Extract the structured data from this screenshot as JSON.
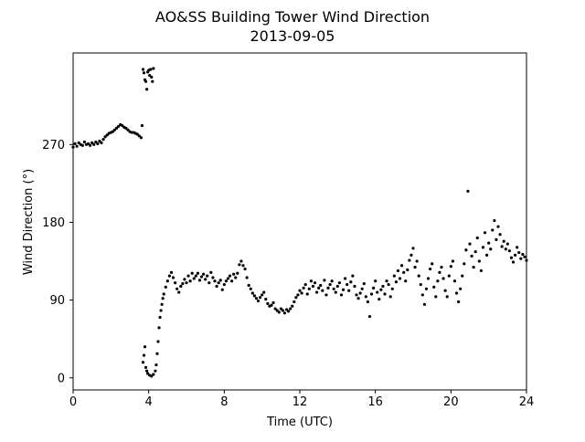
{
  "chart_data": {
    "type": "scatter",
    "title": "AO&SS Building Tower Wind Direction",
    "subtitle": "2013-09-05",
    "xlabel": "Time (UTC)",
    "ylabel": "Wind Direction (°)",
    "xlim": [
      0,
      24
    ],
    "ylim": [
      -14,
      376
    ],
    "xticks": [
      0,
      4,
      8,
      12,
      16,
      20,
      24
    ],
    "xtick_labels": [
      "0",
      "4",
      "8",
      "12",
      "16",
      "20",
      "24"
    ],
    "yticks": [
      0,
      90,
      180,
      270
    ],
    "ytick_labels": [
      "0",
      "90",
      "180",
      "270"
    ],
    "grid": false,
    "legend": "none",
    "marker_color": "#000000",
    "series": [
      {
        "points": [
          [
            0.0,
            267
          ],
          [
            0.1,
            271
          ],
          [
            0.2,
            268
          ],
          [
            0.3,
            272
          ],
          [
            0.4,
            270
          ],
          [
            0.5,
            269
          ],
          [
            0.6,
            273
          ],
          [
            0.7,
            270
          ],
          [
            0.8,
            271
          ],
          [
            0.9,
            269
          ],
          [
            1.0,
            272
          ],
          [
            1.1,
            270
          ],
          [
            1.2,
            273
          ],
          [
            1.3,
            271
          ],
          [
            1.4,
            274
          ],
          [
            1.5,
            272
          ],
          [
            1.6,
            276
          ],
          [
            1.7,
            279
          ],
          [
            1.8,
            281
          ],
          [
            1.9,
            283
          ],
          [
            2.0,
            284
          ],
          [
            2.1,
            285
          ],
          [
            2.2,
            287
          ],
          [
            2.3,
            289
          ],
          [
            2.4,
            291
          ],
          [
            2.5,
            293
          ],
          [
            2.6,
            292
          ],
          [
            2.7,
            290
          ],
          [
            2.8,
            289
          ],
          [
            2.9,
            287
          ],
          [
            3.0,
            285
          ],
          [
            3.1,
            284
          ],
          [
            3.2,
            284
          ],
          [
            3.3,
            283
          ],
          [
            3.4,
            282
          ],
          [
            3.5,
            280
          ],
          [
            3.6,
            278
          ],
          [
            3.65,
            292
          ],
          [
            3.7,
            357
          ],
          [
            3.75,
            353
          ],
          [
            3.8,
            345
          ],
          [
            3.85,
            343
          ],
          [
            3.9,
            334
          ],
          [
            3.95,
            354
          ],
          [
            4.0,
            356
          ],
          [
            4.05,
            350
          ],
          [
            4.1,
            357
          ],
          [
            4.15,
            348
          ],
          [
            4.2,
            343
          ],
          [
            4.25,
            358
          ],
          [
            3.7,
            18
          ],
          [
            3.75,
            26
          ],
          [
            3.8,
            36
          ],
          [
            3.85,
            12
          ],
          [
            3.9,
            8
          ],
          [
            3.95,
            5
          ],
          [
            4.05,
            3
          ],
          [
            4.15,
            2
          ],
          [
            4.25,
            4
          ],
          [
            4.35,
            8
          ],
          [
            4.4,
            15
          ],
          [
            4.45,
            28
          ],
          [
            4.5,
            42
          ],
          [
            4.55,
            58
          ],
          [
            4.6,
            70
          ],
          [
            4.65,
            78
          ],
          [
            4.7,
            85
          ],
          [
            4.75,
            92
          ],
          [
            4.8,
            97
          ],
          [
            4.9,
            105
          ],
          [
            5.0,
            112
          ],
          [
            5.1,
            118
          ],
          [
            5.2,
            122
          ],
          [
            5.3,
            116
          ],
          [
            5.4,
            110
          ],
          [
            5.5,
            103
          ],
          [
            5.6,
            99
          ],
          [
            5.7,
            106
          ],
          [
            5.8,
            109
          ],
          [
            5.9,
            114
          ],
          [
            6.0,
            110
          ],
          [
            6.1,
            118
          ],
          [
            6.2,
            112
          ],
          [
            6.3,
            121
          ],
          [
            6.4,
            115
          ],
          [
            6.5,
            118
          ],
          [
            6.6,
            121
          ],
          [
            6.7,
            113
          ],
          [
            6.8,
            117
          ],
          [
            6.9,
            120
          ],
          [
            7.0,
            114
          ],
          [
            7.1,
            118
          ],
          [
            7.2,
            110
          ],
          [
            7.3,
            122
          ],
          [
            7.4,
            116
          ],
          [
            7.5,
            112
          ],
          [
            7.6,
            106
          ],
          [
            7.7,
            110
          ],
          [
            7.8,
            113
          ],
          [
            7.9,
            102
          ],
          [
            8.0,
            108
          ],
          [
            8.1,
            112
          ],
          [
            8.2,
            115
          ],
          [
            8.3,
            118
          ],
          [
            8.4,
            112
          ],
          [
            8.5,
            120
          ],
          [
            8.6,
            116
          ],
          [
            8.7,
            121
          ],
          [
            8.8,
            131
          ],
          [
            8.9,
            135
          ],
          [
            9.0,
            130
          ],
          [
            9.1,
            126
          ],
          [
            9.2,
            116
          ],
          [
            9.3,
            107
          ],
          [
            9.4,
            103
          ],
          [
            9.5,
            98
          ],
          [
            9.6,
            95
          ],
          [
            9.7,
            92
          ],
          [
            9.8,
            89
          ],
          [
            9.9,
            93
          ],
          [
            10.0,
            96
          ],
          [
            10.1,
            99
          ],
          [
            10.2,
            91
          ],
          [
            10.3,
            86
          ],
          [
            10.4,
            83
          ],
          [
            10.5,
            84
          ],
          [
            10.6,
            87
          ],
          [
            10.7,
            80
          ],
          [
            10.8,
            78
          ],
          [
            10.9,
            76
          ],
          [
            11.0,
            80
          ],
          [
            11.1,
            78
          ],
          [
            11.2,
            75
          ],
          [
            11.3,
            79
          ],
          [
            11.4,
            77
          ],
          [
            11.5,
            80
          ],
          [
            11.6,
            83
          ],
          [
            11.7,
            88
          ],
          [
            11.8,
            93
          ],
          [
            11.9,
            96
          ],
          [
            12.0,
            101
          ],
          [
            12.1,
            98
          ],
          [
            12.2,
            104
          ],
          [
            12.3,
            108
          ],
          [
            12.4,
            97
          ],
          [
            12.5,
            103
          ],
          [
            12.6,
            112
          ],
          [
            12.7,
            106
          ],
          [
            12.8,
            110
          ],
          [
            12.9,
            99
          ],
          [
            13.0,
            104
          ],
          [
            13.1,
            107
          ],
          [
            13.2,
            101
          ],
          [
            13.3,
            113
          ],
          [
            13.4,
            96
          ],
          [
            13.5,
            104
          ],
          [
            13.6,
            108
          ],
          [
            13.7,
            112
          ],
          [
            13.8,
            103
          ],
          [
            13.9,
            99
          ],
          [
            14.0,
            106
          ],
          [
            14.1,
            110
          ],
          [
            14.2,
            96
          ],
          [
            14.3,
            102
          ],
          [
            14.4,
            115
          ],
          [
            14.5,
            108
          ],
          [
            14.6,
            101
          ],
          [
            14.7,
            111
          ],
          [
            14.8,
            118
          ],
          [
            14.9,
            106
          ],
          [
            15.0,
            96
          ],
          [
            15.1,
            92
          ],
          [
            15.2,
            98
          ],
          [
            15.3,
            103
          ],
          [
            15.4,
            109
          ],
          [
            15.5,
            94
          ],
          [
            15.6,
            88
          ],
          [
            15.7,
            71
          ],
          [
            15.8,
            97
          ],
          [
            15.9,
            104
          ],
          [
            16.0,
            112
          ],
          [
            16.1,
            99
          ],
          [
            16.2,
            91
          ],
          [
            16.3,
            102
          ],
          [
            16.4,
            106
          ],
          [
            16.5,
            97
          ],
          [
            16.6,
            112
          ],
          [
            16.7,
            108
          ],
          [
            16.8,
            94
          ],
          [
            16.9,
            103
          ],
          [
            17.0,
            118
          ],
          [
            17.1,
            111
          ],
          [
            17.2,
            124
          ],
          [
            17.3,
            115
          ],
          [
            17.4,
            130
          ],
          [
            17.5,
            122
          ],
          [
            17.6,
            112
          ],
          [
            17.7,
            125
          ],
          [
            17.8,
            136
          ],
          [
            17.9,
            142
          ],
          [
            18.0,
            150
          ],
          [
            18.1,
            128
          ],
          [
            18.2,
            135
          ],
          [
            18.3,
            118
          ],
          [
            18.4,
            108
          ],
          [
            18.5,
            96
          ],
          [
            18.6,
            85
          ],
          [
            18.7,
            103
          ],
          [
            18.8,
            115
          ],
          [
            18.9,
            126
          ],
          [
            19.0,
            132
          ],
          [
            19.1,
            105
          ],
          [
            19.2,
            94
          ],
          [
            19.3,
            112
          ],
          [
            19.4,
            122
          ],
          [
            19.5,
            128
          ],
          [
            19.6,
            115
          ],
          [
            19.7,
            101
          ],
          [
            19.8,
            94
          ],
          [
            19.9,
            118
          ],
          [
            20.0,
            129
          ],
          [
            20.1,
            135
          ],
          [
            20.2,
            112
          ],
          [
            20.3,
            98
          ],
          [
            20.4,
            88
          ],
          [
            20.5,
            103
          ],
          [
            20.6,
            118
          ],
          [
            20.7,
            132
          ],
          [
            20.8,
            148
          ],
          [
            20.9,
            216
          ],
          [
            21.0,
            155
          ],
          [
            21.1,
            141
          ],
          [
            21.2,
            128
          ],
          [
            21.3,
            146
          ],
          [
            21.4,
            162
          ],
          [
            21.5,
            135
          ],
          [
            21.6,
            124
          ],
          [
            21.7,
            151
          ],
          [
            21.8,
            168
          ],
          [
            21.9,
            142
          ],
          [
            22.0,
            156
          ],
          [
            22.1,
            149
          ],
          [
            22.2,
            171
          ],
          [
            22.3,
            182
          ],
          [
            22.4,
            160
          ],
          [
            22.5,
            175
          ],
          [
            22.6,
            166
          ],
          [
            22.7,
            152
          ],
          [
            22.8,
            158
          ],
          [
            22.9,
            149
          ],
          [
            23.0,
            155
          ],
          [
            23.1,
            147
          ],
          [
            23.2,
            139
          ],
          [
            23.3,
            134
          ],
          [
            23.4,
            142
          ],
          [
            23.5,
            151
          ],
          [
            23.6,
            145
          ],
          [
            23.7,
            138
          ],
          [
            23.8,
            143
          ],
          [
            23.9,
            140
          ],
          [
            24.0,
            136
          ]
        ]
      }
    ]
  }
}
